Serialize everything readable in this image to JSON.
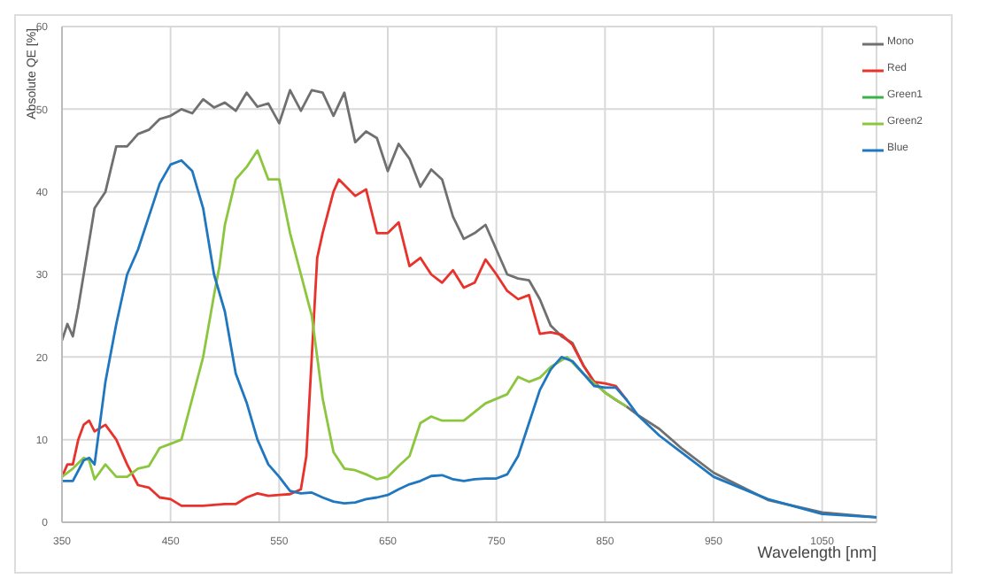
{
  "chart_data": {
    "type": "line",
    "xlabel": "Wavelength [nm]",
    "ylabel": "Absolute QE [%]",
    "xlim": [
      350,
      1100
    ],
    "xticks": [
      350,
      450,
      550,
      650,
      750,
      850,
      950,
      1050
    ],
    "ylim": [
      0,
      60
    ],
    "yticks": [
      0,
      10,
      20,
      30,
      40,
      50,
      60
    ],
    "grid": true,
    "legend": "top right",
    "marker": "none",
    "line_style": "solid",
    "series": [
      {
        "name": "Mono",
        "color": "#707070",
        "x": [
          350,
          355,
          360,
          365,
          370,
          375,
          380,
          390,
          400,
          410,
          420,
          430,
          440,
          450,
          460,
          470,
          480,
          490,
          500,
          510,
          520,
          530,
          540,
          550,
          560,
          570,
          580,
          590,
          600,
          610,
          620,
          630,
          640,
          650,
          660,
          670,
          680,
          690,
          700,
          710,
          720,
          730,
          740,
          750,
          760,
          770,
          780,
          790,
          800,
          810,
          820,
          830,
          840,
          850,
          860,
          870,
          880,
          900,
          920,
          950,
          1000,
          1050,
          1100
        ],
        "values": [
          22,
          24,
          22.5,
          26,
          30,
          34,
          38,
          40,
          45.5,
          45.5,
          47,
          47.5,
          48.8,
          49.2,
          50,
          49.5,
          51.2,
          50.2,
          50.8,
          49.8,
          52,
          50.3,
          50.7,
          48.3,
          52.3,
          49.8,
          52.3,
          52,
          49.2,
          52,
          46,
          47.3,
          46.5,
          42.5,
          45.8,
          44,
          40.6,
          42.7,
          41.5,
          37,
          34.3,
          35,
          36,
          33,
          30,
          29.5,
          29.3,
          27,
          23.8,
          22.5,
          21.7,
          19,
          17,
          15.7,
          14.8,
          14,
          13,
          11.3,
          9,
          6,
          2.7,
          1.2,
          0.6
        ]
      },
      {
        "name": "Red",
        "color": "#e8322c",
        "x": [
          350,
          355,
          360,
          365,
          370,
          375,
          380,
          390,
          400,
          410,
          420,
          430,
          440,
          450,
          460,
          470,
          480,
          500,
          510,
          520,
          530,
          540,
          550,
          560,
          570,
          575,
          580,
          585,
          590,
          600,
          605,
          620,
          630,
          640,
          650,
          660,
          670,
          680,
          690,
          700,
          710,
          720,
          730,
          740,
          750,
          760,
          770,
          780,
          790,
          800,
          810,
          820,
          830,
          840,
          850,
          860,
          870
        ],
        "values": [
          5.5,
          7,
          7,
          10,
          11.8,
          12.3,
          11,
          11.8,
          10,
          7,
          4.5,
          4.2,
          3,
          2.8,
          2,
          2,
          2,
          2.2,
          2.2,
          3,
          3.5,
          3.2,
          3.3,
          3.4,
          4,
          8,
          20,
          32,
          35,
          40,
          41.5,
          39.5,
          40.3,
          35,
          35,
          36.3,
          31,
          32,
          30,
          29,
          30.5,
          28.4,
          29,
          31.8,
          30,
          28,
          27,
          27.5,
          22.8,
          23,
          22.7,
          21.5,
          19,
          17,
          16.8,
          16.5,
          14.8
        ]
      },
      {
        "name": "Green1",
        "color": "#3db14a"
      },
      {
        "name": "Green2",
        "color": "#8cc63f",
        "x": [
          350,
          360,
          370,
          375,
          380,
          390,
          400,
          410,
          420,
          430,
          440,
          450,
          460,
          470,
          480,
          490,
          495,
          500,
          510,
          520,
          530,
          540,
          550,
          560,
          570,
          580,
          590,
          600,
          610,
          620,
          630,
          640,
          650,
          660,
          670,
          680,
          690,
          700,
          720,
          740,
          760,
          770,
          780,
          790,
          800,
          815,
          830,
          850,
          870
        ],
        "values": [
          5.5,
          6.5,
          7.8,
          7.5,
          5.2,
          7,
          5.5,
          5.5,
          6.5,
          6.8,
          9,
          9.5,
          10,
          15,
          20,
          27.5,
          31,
          36,
          41.5,
          43,
          45,
          41.5,
          41.5,
          35,
          30,
          25,
          15,
          8.5,
          6.5,
          6.3,
          5.8,
          5.2,
          5.5,
          6.8,
          8,
          12,
          12.8,
          12.3,
          12.3,
          14.4,
          15.5,
          17.6,
          17,
          17.5,
          18.8,
          20,
          18,
          15.7,
          14
        ]
      },
      {
        "name": "Blue",
        "color": "#1f77c0",
        "x": [
          350,
          360,
          370,
          375,
          380,
          390,
          400,
          410,
          420,
          430,
          440,
          450,
          460,
          470,
          480,
          490,
          500,
          510,
          520,
          530,
          540,
          550,
          560,
          570,
          580,
          590,
          600,
          610,
          620,
          630,
          640,
          650,
          660,
          670,
          680,
          690,
          700,
          710,
          720,
          730,
          740,
          750,
          760,
          770,
          780,
          790,
          800,
          810,
          820,
          830,
          840,
          850,
          860,
          870,
          880,
          900,
          920,
          950,
          1000,
          1050,
          1100
        ],
        "values": [
          5,
          5,
          7.5,
          7.8,
          7,
          17,
          24,
          30,
          33,
          37,
          41,
          43.3,
          43.8,
          42.5,
          38,
          30,
          25.5,
          18,
          14.5,
          10,
          7,
          5.5,
          3.8,
          3.5,
          3.6,
          3,
          2.5,
          2.3,
          2.4,
          2.8,
          3,
          3.3,
          4,
          4.6,
          5,
          5.6,
          5.7,
          5.2,
          5,
          5.2,
          5.3,
          5.3,
          5.8,
          8,
          12,
          16,
          18.5,
          20,
          19.5,
          18,
          16.5,
          16.3,
          16.3,
          14.8,
          13,
          10.5,
          8.5,
          5.5,
          2.8,
          1,
          0.6
        ]
      }
    ]
  }
}
